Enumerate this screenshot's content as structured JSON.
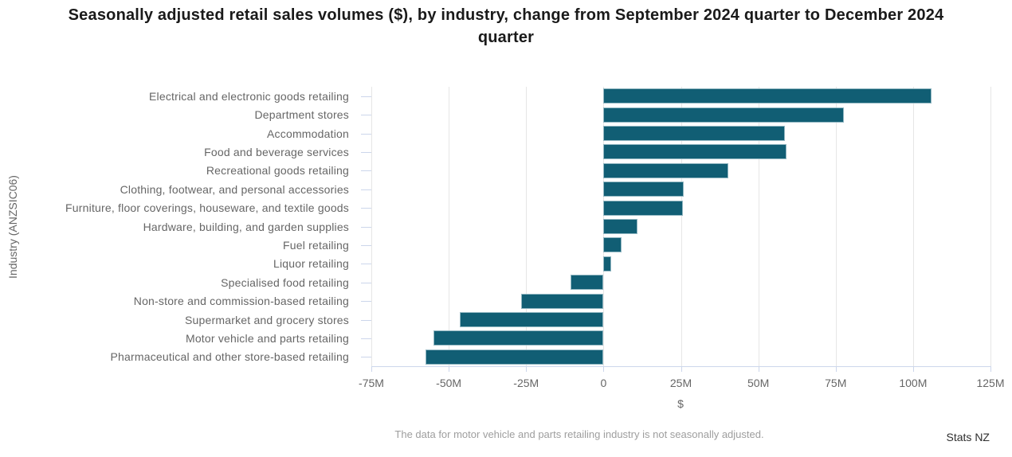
{
  "title": "Seasonally adjusted retail sales volumes ($), by industry, change from September 2024 quarter to December 2024 quarter",
  "footer": {
    "note": "The data for motor vehicle and parts retailing industry is not seasonally adjusted.",
    "source": "Stats NZ"
  },
  "chart_data": {
    "type": "bar",
    "orientation": "horizontal",
    "title": "Seasonally adjusted retail sales volumes ($), by industry, change from September 2024 quarter to December 2024 quarter",
    "xlabel": "$",
    "ylabel": "Industry (ANZSIC06)",
    "xlim_millions": [
      -75,
      125
    ],
    "x_tick_labels": [
      "-75M",
      "-50M",
      "-25M",
      "0",
      "25M",
      "50M",
      "75M",
      "100M",
      "125M"
    ],
    "x_tick_values_millions": [
      -75,
      -50,
      -25,
      0,
      25,
      50,
      75,
      100,
      125
    ],
    "grid": true,
    "legend": "none",
    "categories": [
      "Electrical and electronic goods retailing",
      "Department stores",
      "Accommodation",
      "Food and beverage services",
      "Recreational goods retailing",
      "Clothing, footwear, and personal accessories",
      "Furniture, floor coverings, houseware, and textile goods",
      "Hardware, building, and garden supplies",
      "Fuel retailing",
      "Liquor retailing",
      "Specialised food retailing",
      "Non-store and commission-based retailing",
      "Supermarket and grocery stores",
      "Motor vehicle and parts retailing",
      "Pharmaceutical and other store-based retailing"
    ],
    "values_millions": [
      106,
      77.7,
      58.6,
      59.1,
      40.2,
      26,
      25.6,
      10.9,
      5.9,
      2.5,
      -10.6,
      -26.5,
      -46.3,
      -54.8,
      -57.4
    ],
    "colors": {
      "bar_fill": "#115e74",
      "bar_border": "#92b7c2",
      "gridline": "#e6e6e6",
      "axis_line": "#ccd6eb",
      "label_text": "#666666",
      "title_text": "#1a1a1a",
      "footnote_text": "#9e9e9e",
      "source_text": "#2e2e2e"
    }
  }
}
